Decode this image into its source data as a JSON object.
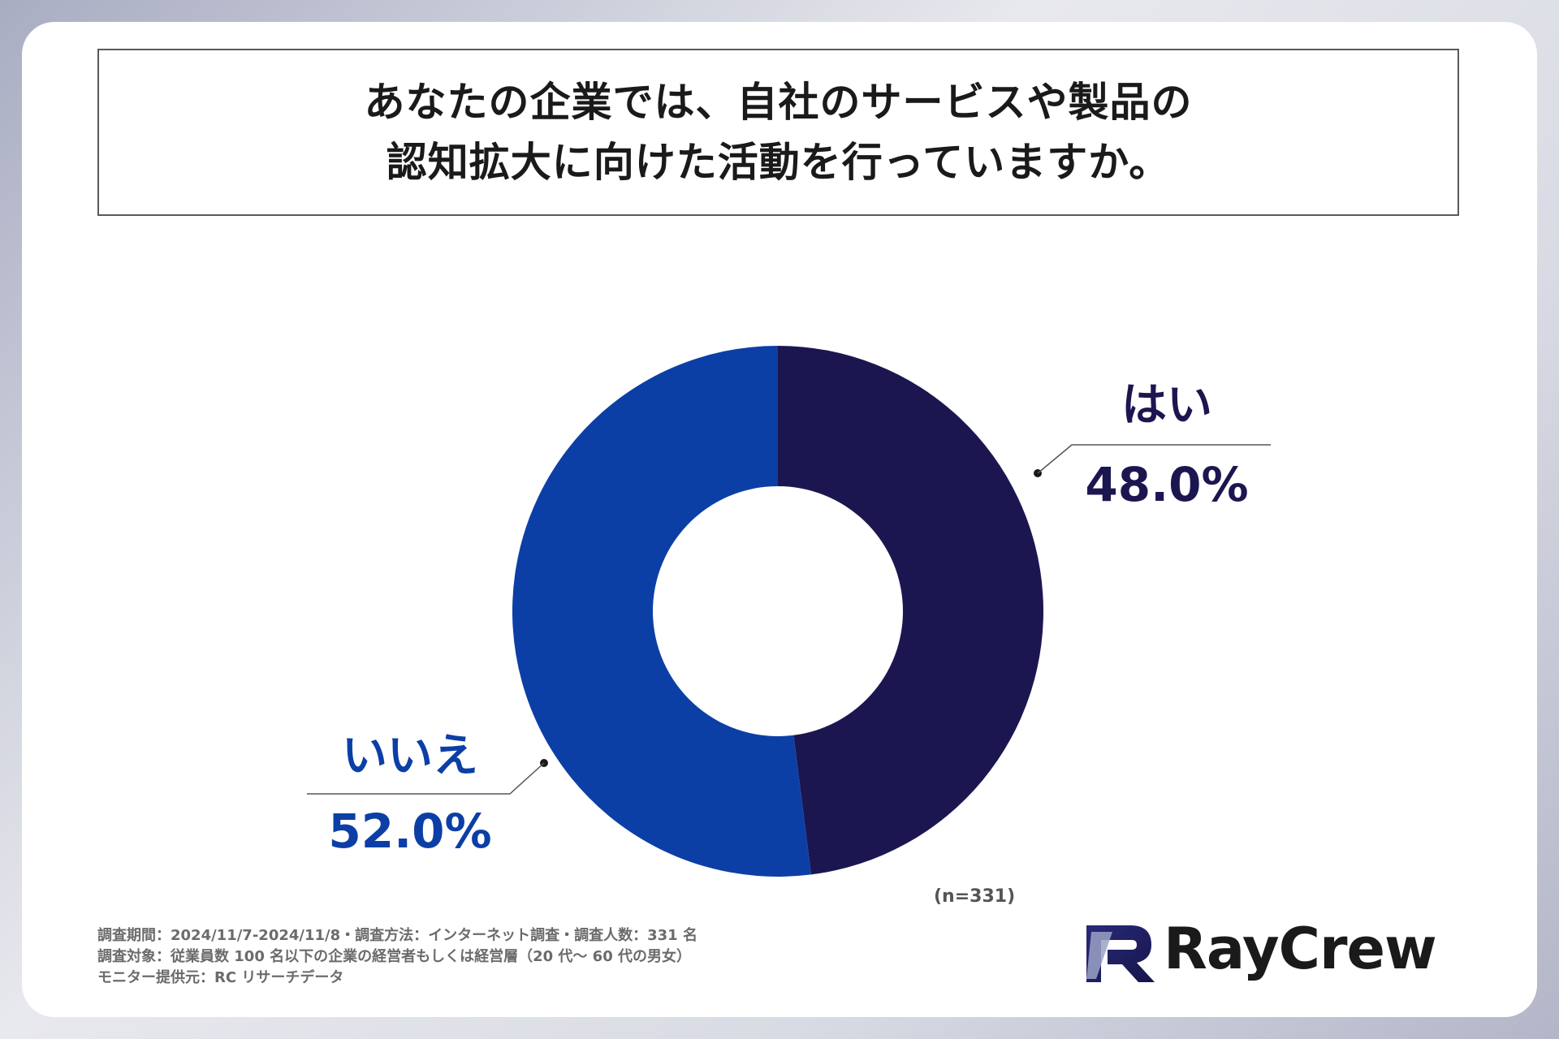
{
  "title": {
    "line1": "あなたの企業では、自社のサービスや製品の",
    "line2": "認知拡大に向けた活動を行っていますか。"
  },
  "chart_data": {
    "type": "pie",
    "style": "donut",
    "categories": [
      "はい",
      "いいえ"
    ],
    "values": [
      48.0,
      52.0
    ],
    "value_labels": [
      "48.0%",
      "52.0%"
    ],
    "colors": [
      "#1c1650",
      "#0c3fa6"
    ],
    "n_label": "(n=331)"
  },
  "notes": [
    "調査期間：2024/11/7-2024/11/8・調査方法：インターネット調査・調査人数：331 名",
    "調査対象：従業員数 100 名以下の企業の経営者もしくは経営層（20 代〜 60 代の男女）",
    "モニター提供元：RC リサーチデータ"
  ],
  "logo": {
    "text": "RayCrew"
  }
}
